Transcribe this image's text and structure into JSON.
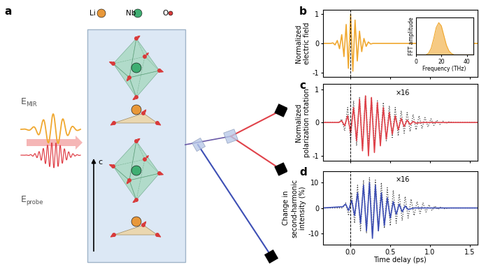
{
  "diagram": {
    "label": "a",
    "legend": [
      {
        "text": "Li",
        "color": "#e8983a"
      },
      {
        "text": "Nb",
        "color": "#3fae72"
      },
      {
        "text": "O",
        "color": "#d83a3a"
      }
    ],
    "fields": [
      {
        "symbol": "E",
        "subscript": "MIR",
        "color": "#f0a830"
      },
      {
        "symbol": "E",
        "subscript": "probe",
        "color": "#e0424a"
      }
    ],
    "axis_label": "c"
  },
  "chart_data": [
    {
      "type": "line",
      "label": "b",
      "ylabel": "Normalized\nelectric field",
      "xlim": [
        -0.35,
        1.6
      ],
      "xticks": [
        0.0,
        0.5,
        1.0,
        1.5
      ],
      "ylim": [
        -1.15,
        1.15
      ],
      "yticks": [
        -1,
        0,
        1
      ],
      "tick_labels": "y",
      "reference_x": 0,
      "series": [
        {
          "color": "#f0a830",
          "line_style": "solid",
          "x": [
            -0.35,
            -0.25,
            -0.224,
            -0.196,
            -0.168,
            -0.14,
            -0.112,
            -0.084,
            -0.056,
            -0.028,
            0.0,
            0.028,
            0.056,
            0.084,
            0.112,
            0.14,
            0.168,
            0.196,
            0.224,
            0.252,
            0.28,
            1.6
          ],
          "values": [
            0,
            0,
            0.02,
            -0.05,
            0.1,
            -0.18,
            0.3,
            -0.45,
            0.65,
            -0.85,
            1.0,
            -0.95,
            0.8,
            -0.6,
            0.42,
            -0.28,
            0.17,
            -0.1,
            0.05,
            -0.02,
            0,
            0
          ]
        }
      ]
    },
    {
      "type": "area",
      "xlabel": "Frequency (THz)",
      "ylabel": "FFT amplitude",
      "xlim": [
        0,
        45
      ],
      "xticks": [
        0,
        20,
        40
      ],
      "ylim": [
        0,
        1.15
      ],
      "yticks": [],
      "tick_labels": "x",
      "series": [
        {
          "color": "#f0a830",
          "line_style": "solid",
          "x": [
            0,
            8,
            10,
            12,
            14,
            16,
            18,
            20,
            22,
            24,
            26,
            28,
            30,
            45
          ],
          "values": [
            0,
            0,
            0.05,
            0.2,
            0.5,
            0.85,
            1.0,
            0.9,
            0.6,
            0.3,
            0.12,
            0.04,
            0,
            0
          ]
        }
      ]
    },
    {
      "type": "line",
      "label": "c",
      "ylabel": "Normalized\npolarization rotation",
      "xlim": [
        -0.35,
        1.6
      ],
      "xticks": [
        0.0,
        0.5,
        1.0,
        1.5
      ],
      "ylim": [
        -1.15,
        1.15
      ],
      "yticks": [
        -1,
        0,
        1
      ],
      "tick_labels": "y",
      "reference_x": 0,
      "annotation": "×16",
      "series": [
        {
          "color": "#444444",
          "line_style": "dotted",
          "x": [
            -0.35,
            -0.15,
            -0.1125,
            -0.075,
            -0.0375,
            0,
            0.0375,
            0.075,
            0.1125,
            0.15,
            0.1875,
            0.225,
            0.2625,
            0.3,
            0.3375,
            0.375,
            0.4125,
            0.45,
            0.4875,
            0.525,
            0.5625,
            0.6,
            0.6375,
            0.675,
            0.7125,
            0.75,
            0.7875,
            0.825,
            0.8625,
            0.9,
            0.9375,
            0.975,
            1.0125,
            1.05,
            1.0875,
            1.125,
            1.1625,
            1.2,
            1.2375,
            1.3,
            1.6
          ],
          "values": [
            0,
            0,
            0.1,
            -0.25,
            0.45,
            -0.55,
            0.65,
            -0.7,
            0.75,
            -0.8,
            0.8,
            -0.75,
            0.75,
            -0.7,
            0.65,
            -0.6,
            0.6,
            -0.55,
            0.5,
            -0.45,
            0.45,
            -0.4,
            0.35,
            -0.32,
            0.3,
            -0.27,
            0.24,
            -0.22,
            0.2,
            -0.17,
            0.15,
            -0.13,
            0.11,
            -0.09,
            0.07,
            -0.06,
            0.04,
            -0.03,
            0.02,
            0,
            0
          ]
        },
        {
          "color": "#e0424a",
          "line_style": "solid",
          "x": [
            -0.35,
            -0.15,
            -0.1125,
            -0.075,
            -0.0375,
            0,
            0.0375,
            0.075,
            0.1125,
            0.15,
            0.1875,
            0.225,
            0.2625,
            0.3,
            0.3375,
            0.375,
            0.4125,
            0.45,
            0.4875,
            0.525,
            0.5625,
            0.6,
            0.6375,
            0.675,
            0.7125,
            0.75,
            0.7875,
            0.825,
            0.9,
            1.6
          ],
          "values": [
            0,
            0,
            0.05,
            -0.1,
            0.2,
            -0.3,
            0.45,
            -0.55,
            0.7,
            -0.85,
            0.8,
            -1.0,
            0.75,
            -0.9,
            0.6,
            -0.7,
            0.45,
            -0.5,
            0.3,
            -0.35,
            0.2,
            -0.22,
            0.12,
            -0.12,
            0.07,
            -0.06,
            0.03,
            -0.02,
            0,
            0
          ]
        }
      ]
    },
    {
      "type": "line",
      "label": "d",
      "ylabel": "Change in\nsecond-harmonic\nintensity (%)",
      "xlabel": "Time delay (ps)",
      "xlim": [
        -0.35,
        1.6
      ],
      "xticks": [
        0.0,
        0.5,
        1.0,
        1.5
      ],
      "ylim": [
        -14.5,
        14.5
      ],
      "yticks": [
        -10,
        0,
        10
      ],
      "reference_x": 0,
      "annotation": "×16",
      "series": [
        {
          "color": "#444444",
          "line_style": "dotted",
          "x": [
            -0.35,
            -0.1,
            -0.0625,
            -0.025,
            0.0125,
            0.05,
            0.0875,
            0.125,
            0.1625,
            0.2,
            0.2375,
            0.275,
            0.3125,
            0.35,
            0.3875,
            0.425,
            0.4625,
            0.5,
            0.5375,
            0.575,
            0.6125,
            0.65,
            0.6875,
            0.725,
            0.7625,
            0.8,
            0.8375,
            0.875,
            0.9125,
            0.95,
            0.9875,
            1.025,
            1.0625,
            1.1,
            1.1375,
            1.175,
            1.25,
            1.6
          ],
          "values": [
            0,
            0,
            2,
            -3,
            6,
            -6,
            9,
            -9,
            11,
            -10,
            12,
            -10,
            11,
            -9,
            10,
            -8,
            8,
            -7,
            7,
            -6,
            5.5,
            -5,
            4.5,
            -4,
            3.5,
            -3,
            2.5,
            -2.2,
            2,
            -1.6,
            1.3,
            -1,
            0.8,
            -0.6,
            0.4,
            -0.3,
            0,
            0
          ]
        },
        {
          "color": "#3d4fb5",
          "line_style": "solid",
          "x": [
            -0.35,
            -0.1,
            -0.0625,
            -0.025,
            0.0125,
            0.05,
            0.0875,
            0.125,
            0.1625,
            0.2,
            0.2375,
            0.275,
            0.3125,
            0.35,
            0.3875,
            0.425,
            0.4625,
            0.5,
            0.5375,
            0.575,
            0.6125,
            0.65,
            0.6875,
            0.725,
            0.8,
            1.6
          ],
          "values": [
            0,
            0.5,
            1.5,
            -1,
            3,
            -3,
            6,
            -6,
            9,
            -9,
            10,
            -12,
            9,
            -9,
            6,
            -7,
            4,
            -4,
            2.5,
            -2.5,
            1.5,
            -1.5,
            0.8,
            -0.6,
            0,
            0
          ]
        }
      ]
    }
  ]
}
